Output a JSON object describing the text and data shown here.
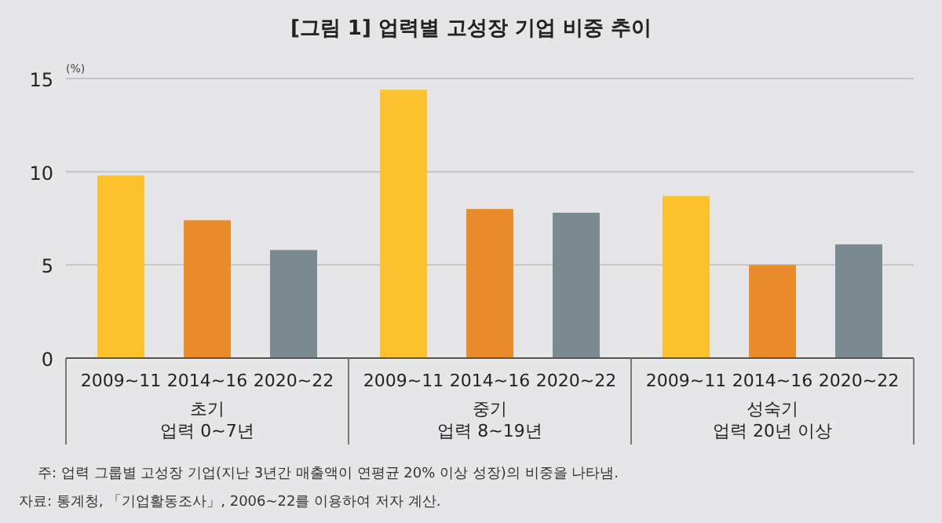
{
  "chart_data": {
    "type": "bar",
    "title": "[그림 1] 업력별 고성장 기업 비중 추이",
    "ylabel": "(%)",
    "categories": [
      "초기\n업력 0~7년",
      "중기\n업력 8~19년",
      "성숙기\n업력 20년 이상"
    ],
    "series": [
      {
        "name": "2009~11",
        "color": "#fbc22d",
        "values": [
          9.8,
          14.4,
          8.7
        ]
      },
      {
        "name": "2014~16",
        "color": "#e98b2a",
        "values": [
          7.4,
          8.0,
          5.0
        ]
      },
      {
        "name": "2020~22",
        "color": "#7b8990",
        "values": [
          5.8,
          7.8,
          6.1
        ]
      }
    ],
    "ylim": [
      0,
      15
    ],
    "yticks": [
      0,
      5,
      10,
      15
    ],
    "grid": "y",
    "legend": false,
    "annotations": [
      "주: 업력 그룹별 고성장 기업(지난 3년간 매출액이 연평균 20% 이상 성장)의 비중을 나타냄.",
      "자료: 통계청, 「기업활동조사」, 2006~22를 이용하여 저자 계산."
    ]
  }
}
